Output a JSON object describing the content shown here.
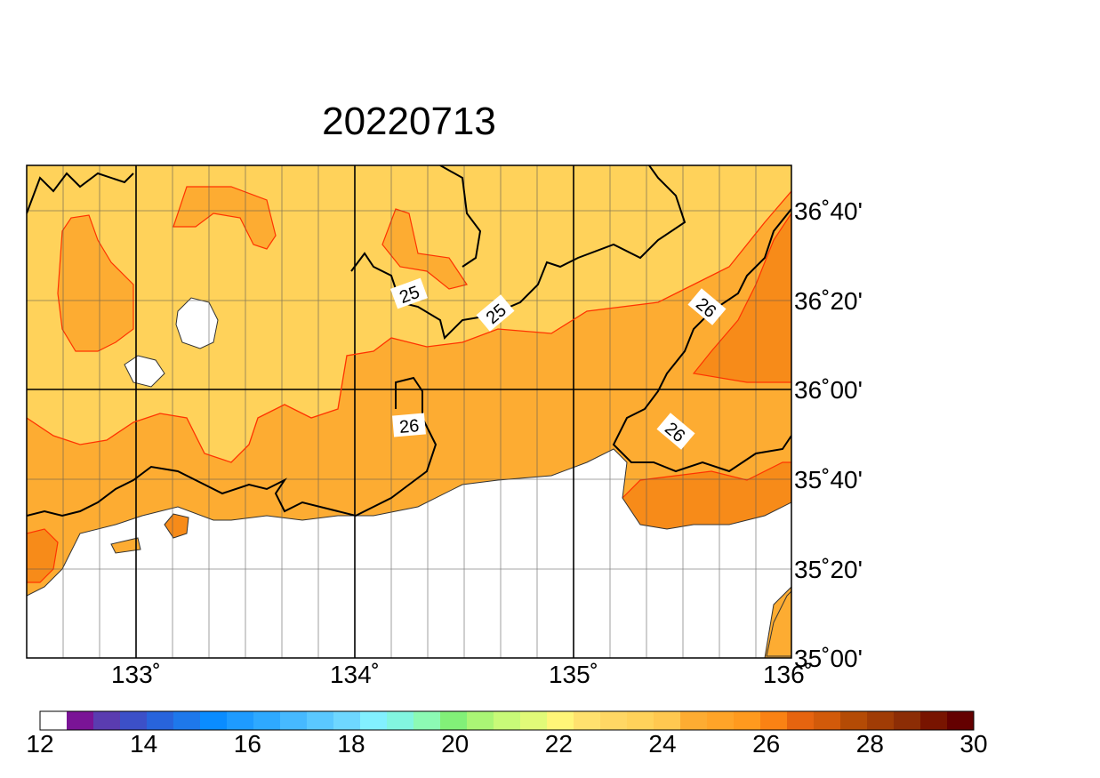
{
  "title": "20220713",
  "map": {
    "lon_labels": [
      "133˚",
      "134˚",
      "135˚",
      "136˚"
    ],
    "lat_labels": [
      "36˚40'",
      "36˚20'",
      "36˚00'",
      "35˚40'",
      "35˚20'",
      "35˚00'"
    ],
    "contour_labels": [
      "25",
      "25",
      "26",
      "26",
      "26"
    ],
    "colors": {
      "light": "#ffd25a",
      "mid": "#fdac32",
      "dark": "#f78b19",
      "sea": "#ffffff",
      "contour_red": "#ff3300",
      "contour_black": "#000000"
    }
  },
  "colorbar": {
    "labels": [
      "12",
      "14",
      "16",
      "18",
      "20",
      "22",
      "24",
      "26",
      "28",
      "30"
    ],
    "colors": [
      "#ffffff",
      "#7a1496",
      "#5a3cb0",
      "#3c50c8",
      "#2864dc",
      "#1e78eb",
      "#0a8cff",
      "#1e9bff",
      "#2ea9ff",
      "#46b9ff",
      "#5ac8ff",
      "#6ed7ff",
      "#82f0ff",
      "#82f5e0",
      "#8cfab4",
      "#82f078",
      "#aaf575",
      "#c8fa78",
      "#e1fa78",
      "#fff578",
      "#ffe16e",
      "#ffd764",
      "#ffd25a",
      "#ffc850",
      "#fdac32",
      "#ffa428",
      "#ff9a1e",
      "#fa8214",
      "#e6640f",
      "#d25a0a",
      "#b44b05",
      "#a03c05",
      "#8c2d05",
      "#781400",
      "#640000"
    ]
  }
}
